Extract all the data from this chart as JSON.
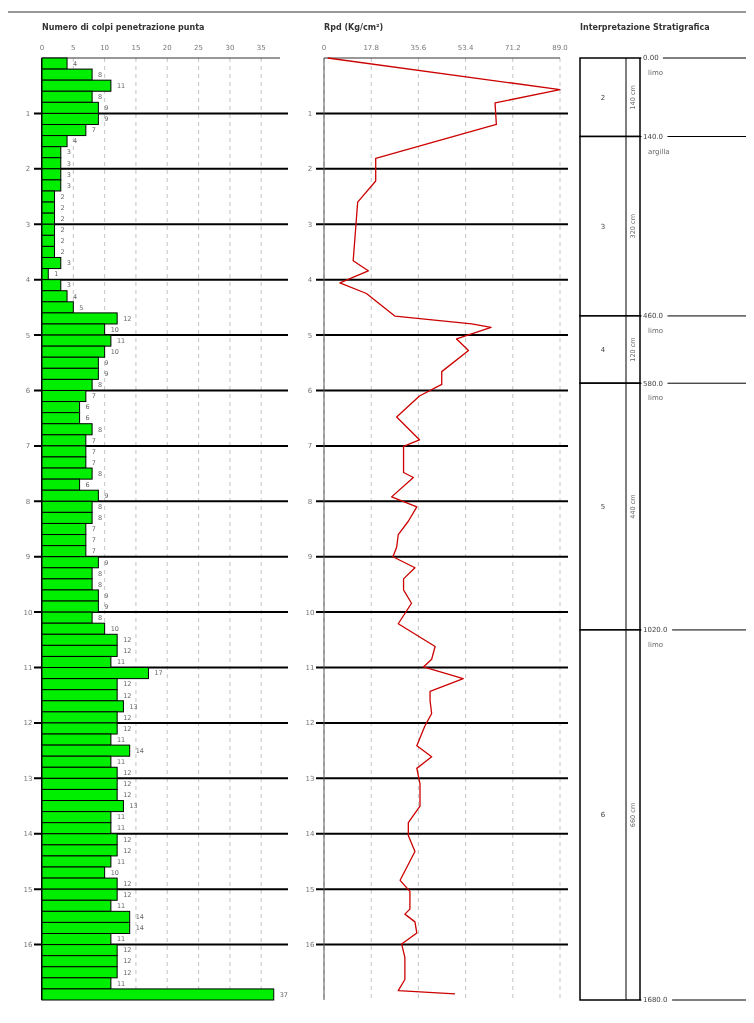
{
  "chart_data": [
    {
      "type": "bar",
      "orientation": "horizontal",
      "title": "Numero di colpi penetrazione punta",
      "color": "#00ee00",
      "grid": true,
      "data_labels": true,
      "xlim": [
        0,
        38
      ],
      "xticks": [
        0,
        5,
        10,
        15,
        20,
        25,
        30,
        35
      ],
      "ylim": [
        17,
        0
      ],
      "yticks": [
        1,
        2,
        3,
        4,
        5,
        6,
        7,
        8,
        9,
        10,
        11,
        12,
        13,
        14,
        15,
        16
      ],
      "x": [
        0.1,
        0.3,
        0.5,
        0.7,
        0.9,
        1.1,
        1.3,
        1.5,
        1.7,
        1.9,
        2.1,
        2.3,
        2.5,
        2.7,
        2.9,
        3.1,
        3.3,
        3.5,
        3.7,
        3.9,
        4.1,
        4.3,
        4.5,
        4.7,
        4.9,
        5.1,
        5.3,
        5.5,
        5.7,
        5.9,
        6.1,
        6.3,
        6.5,
        6.7,
        6.9,
        7.1,
        7.3,
        7.5,
        7.7,
        7.9,
        8.1,
        8.3,
        8.5,
        8.7,
        8.9,
        9.1,
        9.3,
        9.5,
        9.7,
        9.9,
        10.1,
        10.3,
        10.5,
        10.7,
        10.9,
        11.1,
        11.3,
        11.5,
        11.7,
        11.9,
        12.1,
        12.3,
        12.5,
        12.7,
        12.9,
        13.1,
        13.3,
        13.5,
        13.7,
        13.9,
        14.1,
        14.3,
        14.5,
        14.7,
        14.9,
        15.1,
        15.3,
        15.5,
        15.7,
        15.9,
        16.1,
        16.3,
        16.5,
        16.7,
        16.9
      ],
      "values": [
        4,
        8,
        11,
        8,
        9,
        9,
        7,
        4,
        3,
        3,
        3,
        3,
        2,
        2,
        2,
        2,
        2,
        2,
        3,
        1,
        3,
        4,
        5,
        12,
        10,
        11,
        10,
        9,
        9,
        8,
        7,
        6,
        6,
        8,
        7,
        7,
        7,
        8,
        6,
        9,
        8,
        8,
        7,
        7,
        7,
        9,
        8,
        8,
        9,
        9,
        8,
        10,
        12,
        12,
        11,
        17,
        12,
        12,
        13,
        12,
        12,
        11,
        14,
        11,
        12,
        12,
        12,
        13,
        11,
        11,
        12,
        12,
        11,
        10,
        12,
        12,
        11,
        14,
        14,
        11,
        12,
        12,
        12,
        11,
        37
      ]
    },
    {
      "type": "line",
      "title": "Rpd (Kg/cm²)",
      "color": "#cc0000",
      "grid": true,
      "xlim": [
        0,
        89
      ],
      "xticks": [
        0,
        17.8,
        35.6,
        53.4,
        71.2,
        {
          "value": 89,
          "label": "89.0"
        }
      ],
      "ylim": [
        17,
        0
      ],
      "yticks": [
        1,
        2,
        3,
        4,
        5,
        6,
        7,
        8,
        9,
        10,
        11,
        12,
        13,
        14,
        15,
        16
      ],
      "x": [
        1.4,
        89,
        64.5,
        65,
        19.5,
        19.5,
        12.7,
        12,
        11,
        16.7,
        6,
        16,
        26.8,
        55.7,
        63,
        50,
        54.5,
        44.4,
        44.4,
        36,
        27.4,
        36,
        30,
        30,
        33.7,
        25.5,
        35,
        31.8,
        28,
        27.4,
        26,
        34.3,
        30,
        30,
        33,
        28,
        41.9,
        40.6,
        37.5,
        52.5,
        40,
        40,
        40.6,
        38,
        35,
        40.6,
        35,
        36.2,
        36.2,
        31.8,
        31.8,
        34.3,
        28.7,
        32.4,
        32.4,
        30.5,
        34.3,
        35,
        29.3,
        30.5,
        30.5,
        28,
        49.4
      ],
      "values": [
        0,
        0.57,
        0.81,
        1.2,
        1.81,
        2.22,
        2.6,
        3.04,
        3.66,
        3.84,
        4.06,
        4.25,
        4.66,
        4.8,
        4.86,
        5.07,
        5.28,
        5.66,
        5.89,
        6.1,
        6.48,
        6.89,
        7.01,
        7.48,
        7.57,
        7.92,
        8.1,
        8.36,
        8.6,
        8.83,
        9.0,
        9.2,
        9.4,
        9.6,
        9.84,
        10.21,
        10.62,
        10.85,
        10.99,
        11.2,
        11.43,
        11.6,
        11.83,
        12.06,
        12.41,
        12.61,
        12.82,
        13.1,
        13.5,
        13.8,
        14.03,
        14.32,
        14.84,
        15.04,
        15.36,
        15.45,
        15.59,
        15.79,
        15.99,
        16.23,
        16.63,
        16.83,
        16.89
      ]
    },
    {
      "type": "bar",
      "stacked": true,
      "title": "Interpretazione Stratigrafica",
      "legend": false,
      "categories": [
        null
      ],
      "ylim": [
        1680,
        0
      ],
      "yticks": [
        {
          "value": 0,
          "label": "0.00"
        },
        {
          "value": 140,
          "label": "140.0"
        },
        {
          "value": 460,
          "label": "460.0"
        },
        {
          "value": 580,
          "label": "580.0"
        },
        {
          "value": 1020,
          "label": "1020.0"
        },
        {
          "value": 1680,
          "label": "1680.0"
        }
      ],
      "series": [
        {
          "name": "limo",
          "color": "#ffffff",
          "values": [
            140
          ],
          "value_labels": [
            "140 cm"
          ]
        },
        {
          "name": "argilla",
          "color": "#ffffff",
          "values": [
            320
          ],
          "value_labels": [
            "320 cm"
          ]
        },
        {
          "name": "limo",
          "color": "#ffffff",
          "values": [
            120
          ],
          "value_labels": [
            "120 cm"
          ]
        },
        {
          "name": "limo",
          "color": "#ffffff",
          "values": [
            440
          ],
          "value_labels": [
            "440 cm"
          ]
        },
        {
          "name": "limo",
          "color": "#ffffff",
          "values": [
            660
          ],
          "value_labels": [
            "660 cm"
          ]
        }
      ],
      "annotations": [
        "2",
        "3",
        "4",
        "5",
        "6"
      ]
    }
  ]
}
